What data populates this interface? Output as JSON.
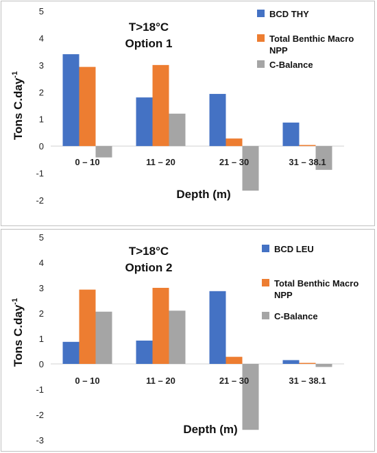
{
  "chart_data": [
    {
      "type": "bar",
      "title": "",
      "annotation": [
        "T>18°C",
        "Option 1"
      ],
      "xlabel": "Depth (m)",
      "ylabel": "Tons C.day",
      "ylabel_sup": "-1",
      "ylim": [
        -2,
        5
      ],
      "yticks": [
        -2,
        -1,
        0,
        1,
        2,
        3,
        4,
        5
      ],
      "categories": [
        "0 – 10",
        "11 – 20",
        "21 – 30",
        "31 – 38.1"
      ],
      "legend_position": "right",
      "series": [
        {
          "name": "BCD THY",
          "color": "#4472C4",
          "values": [
            3.4,
            1.8,
            1.93,
            0.87
          ]
        },
        {
          "name": "Total Benthic Macro NPP",
          "color": "#ED7D31",
          "values": [
            2.93,
            3.0,
            0.28,
            0.04
          ]
        },
        {
          "name": "C-Balance",
          "color": "#A5A5A5",
          "values": [
            -0.42,
            1.2,
            -1.65,
            -0.88
          ]
        }
      ]
    },
    {
      "type": "bar",
      "title": "",
      "annotation": [
        "T>18°C",
        "Option 2"
      ],
      "xlabel": "Depth (m)",
      "ylabel": "Tons C.day",
      "ylabel_sup": "-1",
      "ylim": [
        -3,
        5
      ],
      "yticks": [
        -3,
        -2,
        -1,
        0,
        1,
        2,
        3,
        4,
        5
      ],
      "categories": [
        "0 – 10",
        "11 – 20",
        "21 – 30",
        "31 – 38.1"
      ],
      "legend_position": "right",
      "series": [
        {
          "name": "BCD LEU",
          "color": "#4472C4",
          "values": [
            0.87,
            0.92,
            2.87,
            0.15
          ]
        },
        {
          "name": "Total Benthic Macro NPP",
          "color": "#ED7D31",
          "values": [
            2.93,
            3.0,
            0.28,
            0.04
          ]
        },
        {
          "name": "C-Balance",
          "color": "#A5A5A5",
          "values": [
            2.06,
            2.1,
            -2.6,
            -0.12
          ]
        }
      ]
    }
  ]
}
